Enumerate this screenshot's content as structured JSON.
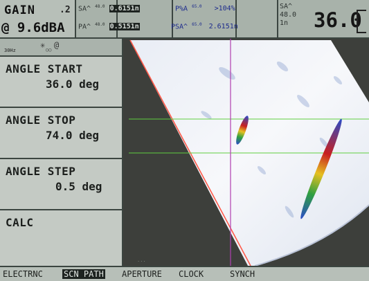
{
  "header": {
    "gain_label": "GAIN",
    "gain_step": ".2",
    "gain_value": "@ 9.6dBA",
    "cells": [
      {
        "name": "SA^",
        "sub": "48.0",
        "val": "0.6151n"
      },
      {
        "name": "PA^",
        "sub": "48.0",
        "val": "0.5151n"
      },
      {
        "name": "P%A",
        "sub": "65.0",
        "val": ">104%"
      },
      {
        "name": "PSA^",
        "sub": "65.0",
        "val": "2.6151n"
      },
      {
        "name": "SA^",
        "sub": "48.0",
        "val": "1n"
      }
    ],
    "big_value": "36.0"
  },
  "left_panel": {
    "hz_label": "30Hz",
    "params": [
      {
        "label": "ANGLE START",
        "value": "36.0 deg"
      },
      {
        "label": "ANGLE STOP",
        "value": "74.0 deg"
      },
      {
        "label": "ANGLE STEP",
        "value": "0.5 deg"
      },
      {
        "label": "CALC",
        "value": ""
      }
    ]
  },
  "scan": {
    "type": "sector-scan",
    "start_angle_deg": 36.0,
    "stop_angle_deg": 74.0,
    "cursor_color": "#b03fb0",
    "gate_color": "#5fcf3f",
    "edge_color": "#ff5a4a"
  },
  "bottom_menu": {
    "items": [
      {
        "label": "ELECTRNC",
        "selected": false
      },
      {
        "label": "SCN PATH",
        "selected": true
      },
      {
        "label": "APERTURE",
        "selected": false
      },
      {
        "label": "CLOCK",
        "selected": false
      },
      {
        "label": "SYNCH",
        "selected": false
      }
    ]
  },
  "colors": {
    "background": "#8b968f",
    "panel": "#c4cac4",
    "scan_bg": "#3d3f3b",
    "scan_fan": "#f3f5f7"
  }
}
